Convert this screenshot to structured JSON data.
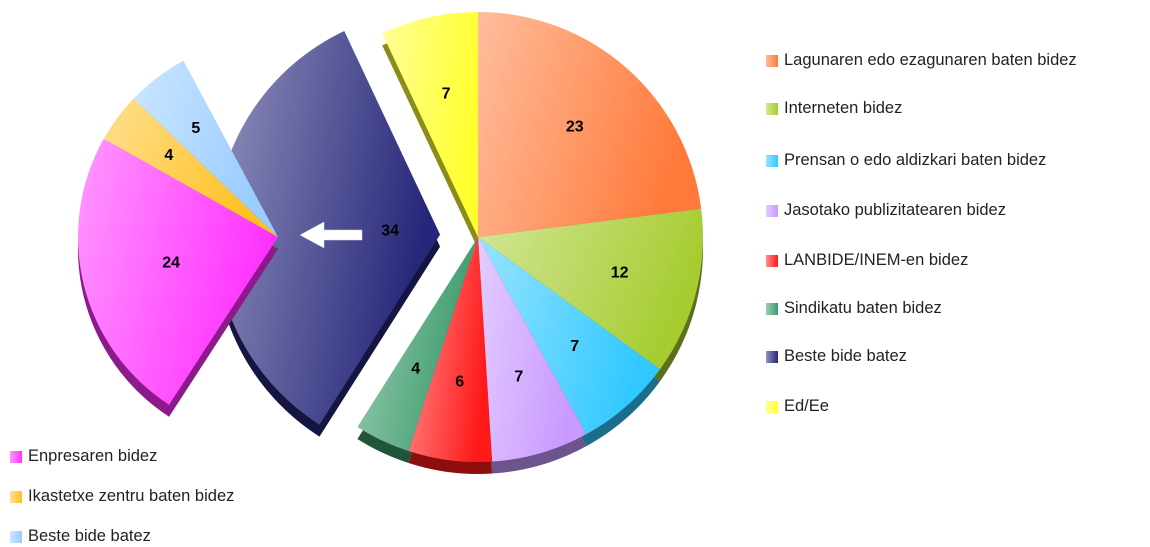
{
  "chart_data": {
    "type": "pie",
    "categories": [
      "Lagunaren edo ezagunaren baten bidez",
      "Interneten bidez",
      "Prensan o edo aldizkari baten bidez",
      "Jasotako publizitatearen bidez",
      "LANBIDE/INEM-en bidez",
      "Sindikatu baten bidez",
      "Beste bide batez",
      "Ed/Ee"
    ],
    "values": [
      23,
      12,
      7,
      7,
      6,
      4,
      34,
      7
    ],
    "colors": [
      "#ff7a3a",
      "#a6cc30",
      "#30c8ff",
      "#c899ff",
      "#ff1a1a",
      "#3a9a6a",
      "#26267a",
      "#ffff30"
    ],
    "secondary": {
      "categories": [
        "Enpresaren bidez",
        "Ikastetxe zentru baten bidez",
        "Beste bide batez"
      ],
      "values": [
        24,
        4,
        5
      ],
      "colors": [
        "#ff30ff",
        "#ffc020",
        "#99ccff"
      ]
    }
  }
}
